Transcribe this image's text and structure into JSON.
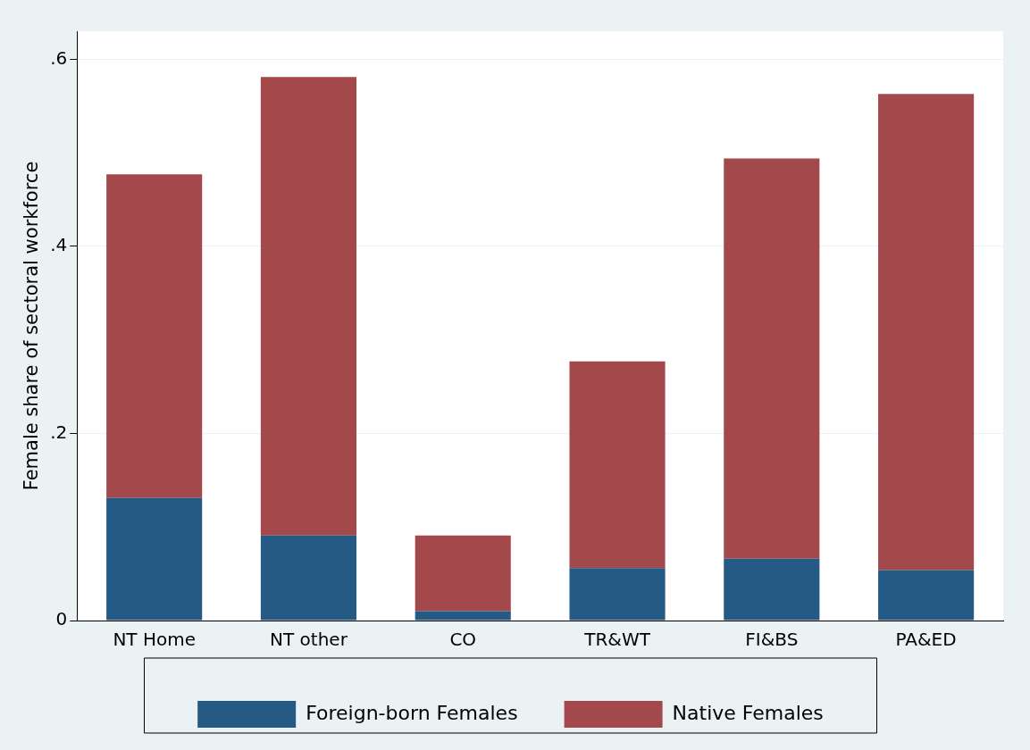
{
  "chart_data": {
    "type": "bar",
    "stacked": true,
    "ylabel": "Female share of sectoral workforce",
    "categories": [
      "NT Home",
      "NT other",
      "CO",
      "TR&WT",
      "FI&BS",
      "PA&ED"
    ],
    "series": [
      {
        "name": "Foreign-born Females",
        "color": "#245a83",
        "values": [
          0.131,
          0.091,
          0.01,
          0.056,
          0.066,
          0.054
        ]
      },
      {
        "name": "Native Females",
        "color": "#a3494b",
        "values": [
          0.346,
          0.49,
          0.081,
          0.221,
          0.428,
          0.509
        ]
      }
    ],
    "ylim": [
      0,
      0.63
    ],
    "yticks": [
      0,
      {
        "value": 0.2,
        "label": ".2"
      },
      {
        "value": 0.4,
        "label": ".4"
      },
      {
        "value": 0.6,
        "label": ".6"
      }
    ],
    "grid": "y",
    "legend": "bottom"
  }
}
